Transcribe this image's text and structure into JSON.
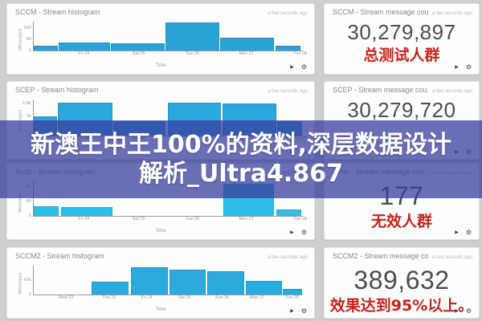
{
  "overlay": {
    "line1": "新澳王中王100%的资料,深层数据设计",
    "line2": "解析_Ultra4.867",
    "background": "#383e9e",
    "text_color": "#ffffff"
  },
  "colors": {
    "page_background": "#cfcfcf",
    "panel_background": "#fdfdfd",
    "red_label": "#c5231b",
    "value_text": "#4d4d4d"
  },
  "icons": {
    "play": "▶",
    "gear": "⚙"
  },
  "histograms": [
    {
      "title": "SCCM - Stream histogram",
      "updated": "a few seconds ago",
      "ylabel": "Messages",
      "xlabel": "Time",
      "bar_color": "#2ba3d7",
      "y_ticks": [
        {
          "label": "100",
          "pct": 79
        },
        {
          "label": "50",
          "pct": 38
        },
        {
          "label": "0",
          "pct": 0
        }
      ],
      "x_ticks": [
        {
          "label": "Fri 24",
          "pct": 18.6
        },
        {
          "label": "Sat 25",
          "pct": 39
        },
        {
          "label": "Sun 26",
          "pct": 59
        },
        {
          "label": "Mon 27",
          "pct": 79
        },
        {
          "label": "Tue 28",
          "pct": 99
        }
      ],
      "bars": [
        {
          "l": 0,
          "w": 9,
          "h": 16
        },
        {
          "l": 9.3,
          "w": 19,
          "h": 29
        },
        {
          "l": 28.7,
          "w": 20,
          "h": 24
        },
        {
          "l": 49,
          "w": 20,
          "h": 97
        },
        {
          "l": 69.4,
          "w": 20,
          "h": 45
        },
        {
          "l": 89.8,
          "w": 9.4,
          "h": 16
        }
      ]
    },
    {
      "title": "SCEP - Stream histogram",
      "updated": "a few seconds ago",
      "ylabel": "Messages",
      "xlabel": "Time",
      "bar_color": "#2aa7dc",
      "y_ticks": [
        {
          "label": "1.8k",
          "pct": 88
        },
        {
          "label": "1k",
          "pct": 53
        },
        {
          "label": "0",
          "pct": 0
        }
      ],
      "x_ticks": [
        {
          "label": "Fri 24",
          "pct": 18.6
        },
        {
          "label": "Sat 25",
          "pct": 39
        },
        {
          "label": "Sun 26",
          "pct": 59
        },
        {
          "label": "Mon 27",
          "pct": 79
        },
        {
          "label": "Tue 28",
          "pct": 99
        }
      ],
      "bars": [
        {
          "l": 0,
          "w": 8.8,
          "h": 53
        },
        {
          "l": 9,
          "w": 20.4,
          "h": 91
        },
        {
          "l": 29.7,
          "w": 19.3,
          "h": 41
        },
        {
          "l": 49.8,
          "w": 19.8,
          "h": 91
        },
        {
          "l": 70.1,
          "w": 20.1,
          "h": 88
        },
        {
          "l": 90.5,
          "w": 9.3,
          "h": 41
        }
      ]
    },
    {
      "title": "Audit - Stream histogram",
      "updated": "a few seconds ago",
      "ylabel": "Messages",
      "xlabel": "Time",
      "bar_color": "#2cbfe8",
      "y_ticks": [
        {
          "label": "80",
          "pct": 84
        },
        {
          "label": "40",
          "pct": 42
        },
        {
          "label": "0",
          "pct": 0
        }
      ],
      "x_ticks": [
        {
          "label": "Fri 24",
          "pct": 18.6
        },
        {
          "label": "Sat 25",
          "pct": 39
        },
        {
          "label": "Sun 26",
          "pct": 59
        },
        {
          "label": "Mon 27",
          "pct": 79
        },
        {
          "label": "Tue 28",
          "pct": 99
        }
      ],
      "bars": [
        {
          "l": 0,
          "w": 9.3,
          "h": 29
        },
        {
          "l": 10,
          "w": 19.4,
          "h": 26
        },
        {
          "l": 70.4,
          "w": 19,
          "h": 94
        },
        {
          "l": 90,
          "w": 9.5,
          "h": 18
        }
      ]
    },
    {
      "title": "SCCM2 - Stream histogram",
      "updated": "a few seconds ago",
      "ylabel": "Messages",
      "xlabel": "Time",
      "bar_color": "#2aaadf",
      "y_ticks": [
        {
          "label": "60k",
          "pct": 50
        },
        {
          "label": "0",
          "pct": 0
        }
      ],
      "x_ticks": [
        {
          "label": "Wed 22",
          "pct": 12
        },
        {
          "label": "Thu 23",
          "pct": 28
        },
        {
          "label": "Fri 24",
          "pct": 42
        },
        {
          "label": "Sat 25",
          "pct": 56
        },
        {
          "label": "Sun 26",
          "pct": 70
        },
        {
          "label": "Mon 27",
          "pct": 83
        },
        {
          "label": "Tue 28",
          "pct": 96
        }
      ],
      "bars": [
        {
          "l": 21.6,
          "w": 13.7,
          "h": 44
        },
        {
          "l": 36,
          "w": 13.8,
          "h": 94
        },
        {
          "l": 50.3,
          "w": 13.6,
          "h": 86
        },
        {
          "l": 64.5,
          "w": 13.7,
          "h": 81
        },
        {
          "l": 78.9,
          "w": 13.2,
          "h": 47
        },
        {
          "l": 92.6,
          "w": 7,
          "h": 19
        }
      ]
    }
  ],
  "counters": [
    {
      "title": "SCCM - Stream message cou...",
      "updated": "a few seconds ago",
      "value": "30,279,897",
      "label": "总测试人群"
    },
    {
      "title": "SCEP - Stream message cou...",
      "updated": "a few seconds ago",
      "value": "30,279,720",
      "label": ""
    },
    {
      "title": "Audit - Stream message cou...",
      "updated": "a few seconds ago",
      "value": "177",
      "label": "无效人群"
    },
    {
      "title": "SCCM2 - Stream message co...",
      "updated": "a few seconds ago",
      "value": "389,632",
      "label": "效果达到95%以上。"
    }
  ]
}
